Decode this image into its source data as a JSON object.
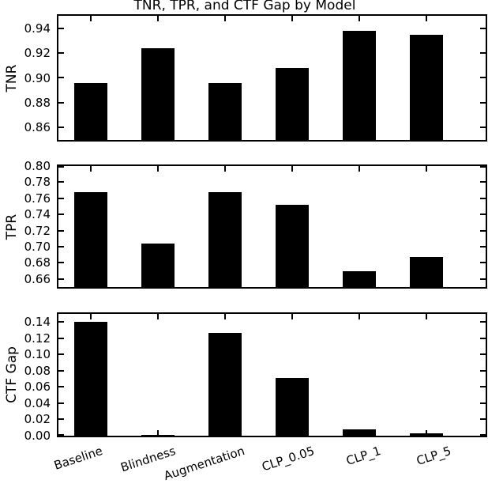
{
  "title": "TNR, TPR, and CTF Gap by Model",
  "chart_data": {
    "type": "bar",
    "title": "TNR, TPR, and CTF Gap by Model",
    "categories": [
      "Baseline",
      "Blindness",
      "Augmentation",
      "CLP_0.05",
      "CLP_1",
      "CLP_5"
    ],
    "bar_color": "#000000",
    "background_color": "#ffffff",
    "layout_hints": {
      "grid": false,
      "legend": false,
      "stacked_subplots": 3,
      "xtick_rotation_deg": 18,
      "ticks_direction": "in",
      "ticks_on_all_spines": true
    },
    "subplots": [
      {
        "ylabel": "TNR",
        "ylim": [
          0.85,
          0.95
        ],
        "ytick_labels": [
          "0.86",
          "0.88",
          "0.90",
          "0.92",
          "0.94"
        ],
        "yticks": [
          0.86,
          0.88,
          0.9,
          0.92,
          0.94
        ],
        "series": [
          {
            "name": "TNR",
            "values": [
              0.896,
              0.924,
              0.896,
              0.908,
              0.938,
              0.935
            ]
          }
        ]
      },
      {
        "ylabel": "TPR",
        "ylim": [
          0.65,
          0.8
        ],
        "ytick_labels": [
          "0.66",
          "0.68",
          "0.70",
          "0.72",
          "0.74",
          "0.76",
          "0.78",
          "0.80"
        ],
        "yticks": [
          0.66,
          0.68,
          0.7,
          0.72,
          0.74,
          0.76,
          0.78,
          0.8
        ],
        "series": [
          {
            "name": "TPR",
            "values": [
              0.768,
              0.704,
              0.768,
              0.752,
              0.67,
              0.687
            ]
          }
        ]
      },
      {
        "ylabel": "CTF Gap",
        "ylim": [
          0.0,
          0.15
        ],
        "ytick_labels": [
          "0.00",
          "0.02",
          "0.04",
          "0.06",
          "0.08",
          "0.10",
          "0.12",
          "0.14"
        ],
        "yticks": [
          0.0,
          0.02,
          0.04,
          0.06,
          0.08,
          0.1,
          0.12,
          0.14
        ],
        "series": [
          {
            "name": "CTF Gap",
            "values": [
              0.14,
              0.001,
              0.127,
              0.071,
              0.008,
              0.003
            ]
          }
        ]
      }
    ]
  }
}
